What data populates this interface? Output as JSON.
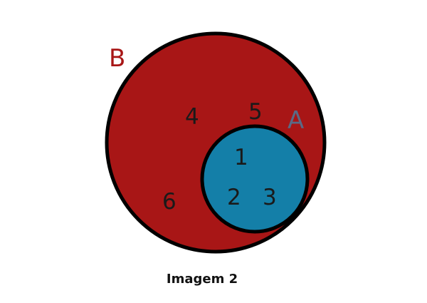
{
  "diagram": {
    "set_b": {
      "label": "B",
      "color": "#a81616",
      "label_color": "#a81616"
    },
    "set_a": {
      "label": "A",
      "color": "#147fa8",
      "label_color": "#5a6a86"
    },
    "outline_color": "#000000",
    "elements_b_only": [
      "4",
      "5",
      "6"
    ],
    "elements_a": [
      "1",
      "2",
      "3"
    ]
  },
  "caption": "Imagem 2"
}
